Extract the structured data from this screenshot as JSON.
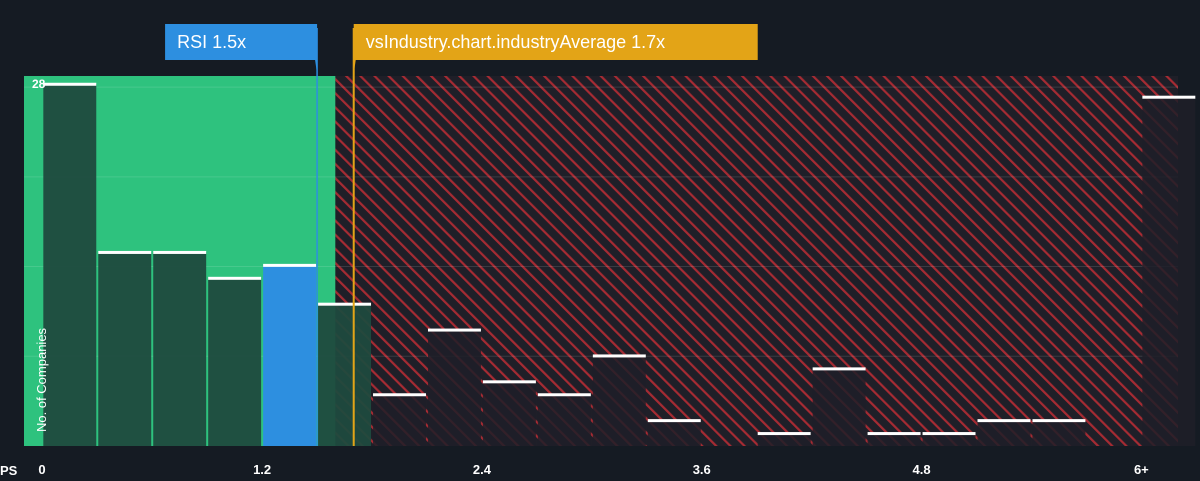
{
  "colors": {
    "background": "#151b23",
    "fair_zone": "#2ec27e",
    "over_zone": "#a62b33",
    "bar_dark": "#1f4a3e",
    "bar_over": "#1f1f28",
    "highlight_bar": "#2d8fe0",
    "industry_line": "#e3a417",
    "bar_top": "#ffffff",
    "tick_text": "#ffffff"
  },
  "chart_data": {
    "type": "bar",
    "xlabel": "PS",
    "ylabel": "No. of Companies",
    "x_ticks": [
      {
        "value": 0,
        "label": "0"
      },
      {
        "value": 1.2,
        "label": "1.2"
      },
      {
        "value": 2.4,
        "label": "2.4"
      },
      {
        "value": 3.6,
        "label": "3.6"
      },
      {
        "value": 4.8,
        "label": "4.8"
      },
      {
        "value": 6,
        "label": "6+"
      }
    ],
    "x_range": [
      -0.1,
      6.2
    ],
    "y_ticks": [
      {
        "value": 28,
        "label": "28"
      }
    ],
    "ylim": [
      0,
      28.6
    ],
    "grid": true,
    "bin_width": 0.3,
    "bins": [
      {
        "x0": 0.0,
        "value": 28.0
      },
      {
        "x0": 0.3,
        "value": 15.0
      },
      {
        "x0": 0.6,
        "value": 15.0
      },
      {
        "x0": 0.9,
        "value": 13.0
      },
      {
        "x0": 1.2,
        "value": 14.0,
        "highlight": true
      },
      {
        "x0": 1.5,
        "value": 11.0
      },
      {
        "x0": 1.8,
        "value": 4.0
      },
      {
        "x0": 2.1,
        "value": 9.0
      },
      {
        "x0": 2.4,
        "value": 5.0
      },
      {
        "x0": 2.7,
        "value": 4.0
      },
      {
        "x0": 3.0,
        "value": 7.0
      },
      {
        "x0": 3.3,
        "value": 2.0
      },
      {
        "x0": 3.6,
        "value": 0
      },
      {
        "x0": 3.9,
        "value": 1.0
      },
      {
        "x0": 4.2,
        "value": 6.0
      },
      {
        "x0": 4.5,
        "value": 1.0
      },
      {
        "x0": 4.8,
        "value": 1.0
      },
      {
        "x0": 5.1,
        "value": 2.0
      },
      {
        "x0": 5.4,
        "value": 2.0
      },
      {
        "x0": 5.7,
        "value": 0
      },
      {
        "x0": 6.0,
        "value": 27.0
      }
    ],
    "fair_zone_end": 1.6,
    "subject": {
      "value": 1.5,
      "label": "RSI 1.5x"
    },
    "industry": {
      "value": 1.7,
      "label": "vsIndustry.chart.industryAverage 1.7x"
    }
  }
}
